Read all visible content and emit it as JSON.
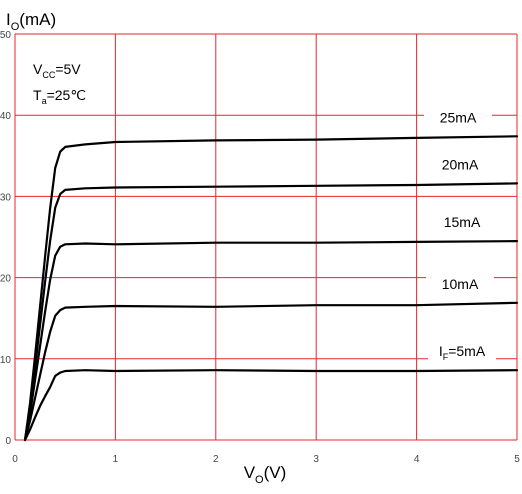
{
  "chart_data": {
    "type": "line",
    "title": "",
    "ylabel": {
      "main": "I",
      "sub": "O",
      "unit": "(mA)"
    },
    "xlabel": {
      "main": "V",
      "sub": "O",
      "unit": "(V)"
    },
    "xlim": [
      0,
      5
    ],
    "ylim": [
      0,
      50
    ],
    "x_ticks": [
      0,
      1,
      2,
      3,
      4,
      5
    ],
    "y_ticks": [
      0,
      10,
      20,
      30,
      40,
      50
    ],
    "x_tick_labels": [
      "0",
      "1",
      "2",
      "3",
      "4",
      "5"
    ],
    "y_tick_labels": [
      "0",
      "10",
      "20",
      "30",
      "40",
      "50"
    ],
    "grid": true,
    "colors": {
      "grid": "#e8262a",
      "series": "#000000",
      "text": "#000000",
      "tick_text": "#444444"
    },
    "conditions": [
      {
        "main": "V",
        "sub": "CC",
        "rest": "=5V"
      },
      {
        "main": "T",
        "sub": "a",
        "rest": "=25℃"
      }
    ],
    "series": [
      {
        "name": "I_F=5mA",
        "label": {
          "main": "I",
          "sub": "F",
          "rest": "=5mA"
        },
        "x": [
          0.1,
          0.15,
          0.2,
          0.25,
          0.3,
          0.35,
          0.4,
          0.45,
          0.5,
          0.7,
          1.0,
          2.0,
          3.0,
          4.0,
          5.0
        ],
        "y": [
          0,
          1.3,
          2.8,
          4.2,
          5.4,
          6.5,
          7.9,
          8.3,
          8.5,
          8.6,
          8.5,
          8.6,
          8.5,
          8.5,
          8.6
        ]
      },
      {
        "name": "10mA",
        "label": {
          "main": "10mA",
          "sub": "",
          "rest": ""
        },
        "x": [
          0.1,
          0.15,
          0.2,
          0.25,
          0.3,
          0.35,
          0.4,
          0.45,
          0.5,
          0.7,
          1.0,
          2.0,
          3.0,
          4.0,
          5.0
        ],
        "y": [
          0,
          2.4,
          5.2,
          8.0,
          10.8,
          13.3,
          15.3,
          16.0,
          16.3,
          16.4,
          16.5,
          16.4,
          16.6,
          16.6,
          16.9
        ]
      },
      {
        "name": "15mA",
        "label": {
          "main": "15mA",
          "sub": "",
          "rest": ""
        },
        "x": [
          0.1,
          0.15,
          0.2,
          0.25,
          0.3,
          0.35,
          0.4,
          0.45,
          0.5,
          0.7,
          1.0,
          2.0,
          3.0,
          4.0,
          5.0
        ],
        "y": [
          0,
          3.3,
          7.4,
          11.6,
          15.8,
          19.7,
          22.7,
          23.8,
          24.1,
          24.2,
          24.1,
          24.3,
          24.3,
          24.4,
          24.5
        ]
      },
      {
        "name": "20mA",
        "label": {
          "main": "20mA",
          "sub": "",
          "rest": ""
        },
        "x": [
          0.1,
          0.15,
          0.2,
          0.25,
          0.3,
          0.35,
          0.4,
          0.45,
          0.5,
          0.7,
          1.0,
          2.0,
          3.0,
          4.0,
          5.0
        ],
        "y": [
          0,
          4.0,
          9.0,
          14.2,
          19.5,
          24.5,
          28.6,
          30.3,
          30.8,
          31.0,
          31.1,
          31.2,
          31.3,
          31.4,
          31.6
        ]
      },
      {
        "name": "25mA",
        "label": {
          "main": "25mA",
          "sub": "",
          "rest": ""
        },
        "x": [
          0.1,
          0.15,
          0.2,
          0.25,
          0.3,
          0.35,
          0.4,
          0.45,
          0.5,
          0.7,
          1.0,
          2.0,
          3.0,
          4.0,
          5.0
        ],
        "y": [
          0,
          4.6,
          10.4,
          16.5,
          22.6,
          28.5,
          33.5,
          35.5,
          36.1,
          36.4,
          36.7,
          36.9,
          37.0,
          37.2,
          37.4
        ]
      }
    ]
  }
}
